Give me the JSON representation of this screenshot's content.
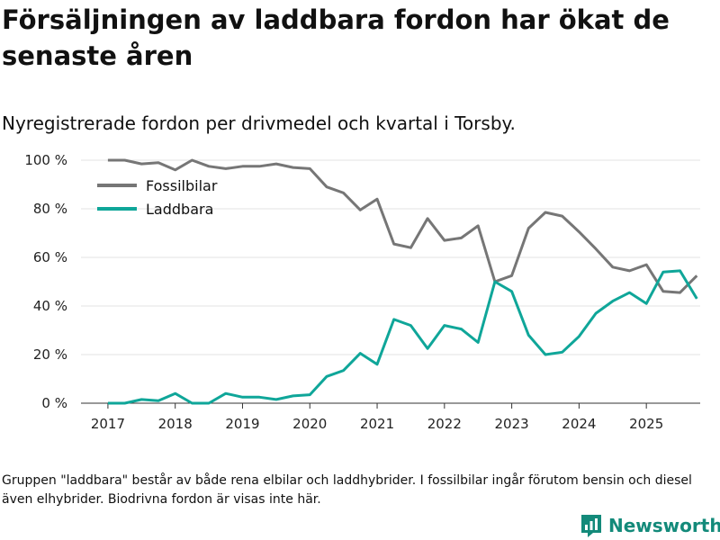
{
  "title": "Försäljningen av laddbara fordon har ökat de senaste åren",
  "subtitle": "Nyregistrerade fordon per drivmedel och kvartal i Torsby.",
  "caption": "Gruppen \"laddbara\" består av både rena elbilar och laddhybrider. I fossilbilar ingår förutom bensin och diesel även elhybrider. Biodrivna fordon är visas inte här.",
  "brand": {
    "name": "Newsworthy",
    "icon": "newsworthy-logo-icon",
    "color": "#138a7a"
  },
  "colors": {
    "fossil": "#767676",
    "electric": "#0fa699",
    "grid": "#e3e3e3",
    "axis": "#333333"
  },
  "chart_data": {
    "type": "line",
    "x": [
      2017.0,
      2017.25,
      2017.5,
      2017.75,
      2018.0,
      2018.25,
      2018.5,
      2018.75,
      2019.0,
      2019.25,
      2019.5,
      2019.75,
      2020.0,
      2020.25,
      2020.5,
      2020.75,
      2021.0,
      2021.25,
      2021.5,
      2021.75,
      2022.0,
      2022.25,
      2022.5,
      2022.75,
      2023.0,
      2023.25,
      2023.5,
      2023.75,
      2024.0,
      2024.25,
      2024.5,
      2024.75,
      2025.0,
      2025.25,
      2025.5,
      2025.75
    ],
    "series": [
      {
        "name": "Fossilbilar",
        "values": [
          100,
          100,
          98.5,
          99,
          96,
          100,
          97.5,
          96.5,
          97.5,
          97.5,
          98.5,
          97,
          96.5,
          89,
          86.5,
          79.5,
          84,
          65.5,
          64,
          76,
          67,
          68,
          73,
          50,
          52.5,
          72,
          78.5,
          77,
          70.5,
          63.5,
          56,
          54.5,
          57,
          46,
          45.5,
          52.5
        ]
      },
      {
        "name": "Laddbara",
        "values": [
          0,
          0,
          1.5,
          1,
          4,
          0,
          0,
          4,
          2.5,
          2.5,
          1.5,
          3,
          3.5,
          11,
          13.5,
          20.5,
          16,
          34.5,
          32,
          22.5,
          32,
          30.5,
          25,
          50,
          46,
          28,
          20,
          21,
          27.5,
          37,
          42,
          45.5,
          41,
          54,
          54.5,
          43
        ]
      }
    ],
    "x_ticks": [
      2017,
      2018,
      2019,
      2020,
      2021,
      2022,
      2023,
      2024,
      2025
    ],
    "x_tick_labels": [
      "2017",
      "2018",
      "2019",
      "2020",
      "2021",
      "2022",
      "2023",
      "2024",
      "2025"
    ],
    "y_ticks": [
      0,
      20,
      40,
      60,
      80,
      100
    ],
    "y_tick_labels": [
      "0 %",
      "20 %",
      "40 %",
      "60 %",
      "80 %",
      "100 %"
    ],
    "xlim": [
      2016.6,
      2025.8
    ],
    "ylim": [
      0,
      100
    ],
    "xlabel": "",
    "ylabel": "",
    "legend_position": "top-left"
  }
}
